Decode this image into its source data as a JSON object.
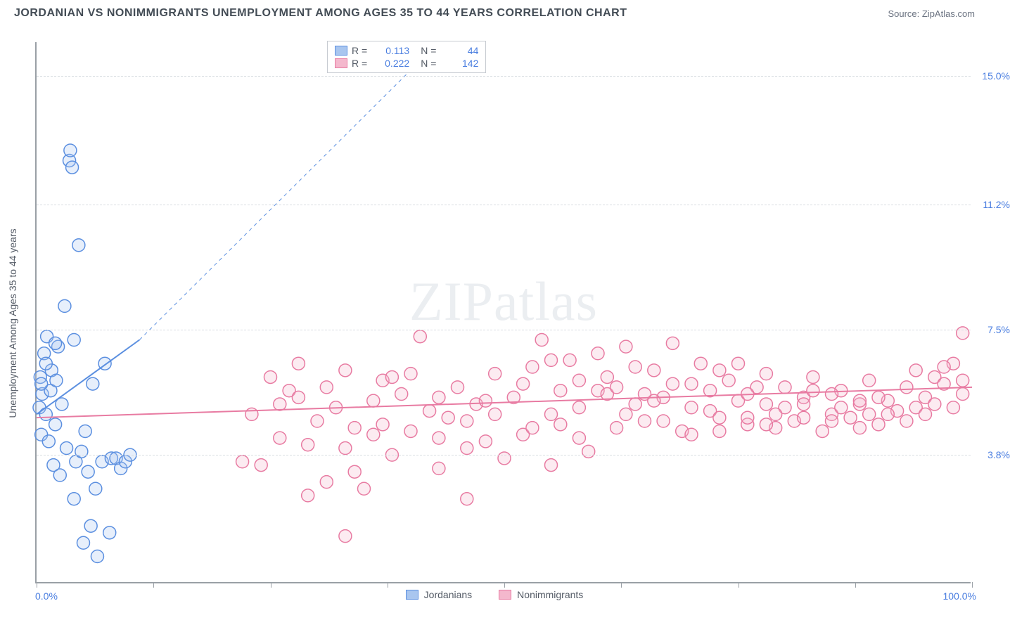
{
  "title": "JORDANIAN VS NONIMMIGRANTS UNEMPLOYMENT AMONG AGES 35 TO 44 YEARS CORRELATION CHART",
  "source_label": "Source: ZipAtlas.com",
  "watermark": "ZIPatlas",
  "chart": {
    "type": "scatter",
    "background_color": "#ffffff",
    "grid_color": "#d9dde2",
    "axis_color": "#9aa0a6",
    "yaxis_title": "Unemployment Among Ages 35 to 44 years",
    "yaxis_title_fontsize": 14,
    "yaxis_title_color": "#545b66",
    "xlim": [
      0,
      100
    ],
    "ylim": [
      0,
      16
    ],
    "xlabel_min": "0.0%",
    "xlabel_max": "100.0%",
    "xlabel_color": "#4a7ee0",
    "xtick_positions": [
      0,
      12.5,
      25,
      37.5,
      50,
      62.5,
      75,
      87.5,
      100
    ],
    "yticks": [
      {
        "value": 3.8,
        "label": "3.8%"
      },
      {
        "value": 7.5,
        "label": "7.5%"
      },
      {
        "value": 11.2,
        "label": "11.2%"
      },
      {
        "value": 15.0,
        "label": "15.0%"
      }
    ],
    "ytick_color": "#4a7ee0",
    "ytick_fontsize": 14,
    "marker_radius": 9,
    "marker_stroke_width": 1.5,
    "marker_fill_opacity": 0.28,
    "series": [
      {
        "name": "Jordanians",
        "color": "#5b8fe0",
        "fill": "#a9c6ef",
        "R": 0.113,
        "N": 44,
        "trend": {
          "x1": 0,
          "y1": 5.0,
          "x2": 11,
          "y2": 7.2,
          "dashed_after": true,
          "dash_x2": 43,
          "dash_y2": 16.0,
          "width": 2
        },
        "points": [
          [
            0.3,
            5.2
          ],
          [
            0.4,
            6.1
          ],
          [
            0.5,
            4.4
          ],
          [
            0.6,
            5.6
          ],
          [
            0.8,
            6.8
          ],
          [
            1.0,
            5.0
          ],
          [
            1.1,
            7.3
          ],
          [
            1.3,
            4.2
          ],
          [
            1.5,
            5.7
          ],
          [
            1.6,
            6.3
          ],
          [
            1.8,
            3.5
          ],
          [
            2.0,
            4.7
          ],
          [
            2.1,
            6.0
          ],
          [
            2.3,
            7.0
          ],
          [
            2.5,
            3.2
          ],
          [
            2.7,
            5.3
          ],
          [
            3.0,
            8.2
          ],
          [
            3.2,
            4.0
          ],
          [
            3.5,
            12.5
          ],
          [
            3.6,
            12.8
          ],
          [
            3.8,
            12.3
          ],
          [
            4.0,
            2.5
          ],
          [
            4.2,
            3.6
          ],
          [
            4.5,
            10.0
          ],
          [
            4.8,
            3.9
          ],
          [
            5.0,
            1.2
          ],
          [
            5.2,
            4.5
          ],
          [
            5.5,
            3.3
          ],
          [
            5.8,
            1.7
          ],
          [
            6.0,
            5.9
          ],
          [
            6.3,
            2.8
          ],
          [
            6.5,
            0.8
          ],
          [
            7.0,
            3.6
          ],
          [
            7.3,
            6.5
          ],
          [
            7.8,
            1.5
          ],
          [
            8.0,
            3.7
          ],
          [
            8.5,
            3.7
          ],
          [
            9.0,
            3.4
          ],
          [
            9.5,
            3.6
          ],
          [
            10.0,
            3.8
          ],
          [
            4.0,
            7.2
          ],
          [
            2.0,
            7.1
          ],
          [
            1.0,
            6.5
          ],
          [
            0.5,
            5.9
          ]
        ]
      },
      {
        "name": "Nonimmigrants",
        "color": "#e87ba2",
        "fill": "#f4b8cd",
        "R": 0.222,
        "N": 142,
        "trend": {
          "x1": 0,
          "y1": 4.9,
          "x2": 100,
          "y2": 5.8,
          "dashed_after": false,
          "width": 2
        },
        "points": [
          [
            22,
            3.6
          ],
          [
            24,
            3.5
          ],
          [
            25,
            6.1
          ],
          [
            26,
            4.3
          ],
          [
            27,
            5.7
          ],
          [
            28,
            6.5
          ],
          [
            29,
            2.6
          ],
          [
            30,
            4.8
          ],
          [
            31,
            3.0
          ],
          [
            32,
            5.2
          ],
          [
            33,
            6.3
          ],
          [
            33,
            1.4
          ],
          [
            34,
            4.6
          ],
          [
            35,
            2.8
          ],
          [
            36,
            5.4
          ],
          [
            37,
            6.0
          ],
          [
            38,
            3.8
          ],
          [
            39,
            5.6
          ],
          [
            40,
            4.5
          ],
          [
            41,
            7.3
          ],
          [
            42,
            5.1
          ],
          [
            43,
            3.4
          ],
          [
            44,
            4.9
          ],
          [
            45,
            5.8
          ],
          [
            46,
            2.5
          ],
          [
            47,
            5.3
          ],
          [
            48,
            4.2
          ],
          [
            49,
            6.2
          ],
          [
            50,
            3.7
          ],
          [
            51,
            5.5
          ],
          [
            52,
            4.4
          ],
          [
            53,
            6.4
          ],
          [
            54,
            7.2
          ],
          [
            55,
            5.0
          ],
          [
            56,
            4.7
          ],
          [
            57,
            6.6
          ],
          [
            58,
            5.2
          ],
          [
            59,
            3.9
          ],
          [
            60,
            5.7
          ],
          [
            61,
            6.1
          ],
          [
            62,
            4.6
          ],
          [
            63,
            7.0
          ],
          [
            64,
            5.3
          ],
          [
            65,
            4.8
          ],
          [
            66,
            6.3
          ],
          [
            67,
            5.5
          ],
          [
            68,
            7.1
          ],
          [
            69,
            4.5
          ],
          [
            70,
            5.9
          ],
          [
            71,
            6.5
          ],
          [
            72,
            5.1
          ],
          [
            73,
            4.9
          ],
          [
            74,
            6.0
          ],
          [
            75,
            5.4
          ],
          [
            76,
            4.7
          ],
          [
            77,
            5.8
          ],
          [
            78,
            6.2
          ],
          [
            79,
            4.6
          ],
          [
            80,
            5.2
          ],
          [
            81,
            4.8
          ],
          [
            82,
            5.5
          ],
          [
            83,
            6.1
          ],
          [
            84,
            4.5
          ],
          [
            85,
            5.0
          ],
          [
            86,
            5.7
          ],
          [
            87,
            4.9
          ],
          [
            88,
            5.3
          ],
          [
            89,
            6.0
          ],
          [
            90,
            4.7
          ],
          [
            91,
            5.4
          ],
          [
            92,
            5.1
          ],
          [
            93,
            5.8
          ],
          [
            94,
            6.3
          ],
          [
            95,
            5.5
          ],
          [
            96,
            6.1
          ],
          [
            97,
            5.9
          ],
          [
            98,
            6.5
          ],
          [
            98,
            5.2
          ],
          [
            99,
            7.4
          ],
          [
            99,
            6.0
          ],
          [
            99,
            5.6
          ],
          [
            23,
            5.0
          ],
          [
            26,
            5.3
          ],
          [
            29,
            4.1
          ],
          [
            31,
            5.8
          ],
          [
            34,
            3.3
          ],
          [
            37,
            4.7
          ],
          [
            40,
            6.2
          ],
          [
            43,
            5.5
          ],
          [
            46,
            4.0
          ],
          [
            49,
            5.0
          ],
          [
            52,
            5.9
          ],
          [
            55,
            6.6
          ],
          [
            58,
            4.3
          ],
          [
            61,
            5.6
          ],
          [
            64,
            6.4
          ],
          [
            67,
            4.8
          ],
          [
            70,
            5.2
          ],
          [
            73,
            6.3
          ],
          [
            76,
            5.6
          ],
          [
            79,
            5.0
          ],
          [
            82,
            4.9
          ],
          [
            85,
            5.6
          ],
          [
            88,
            4.6
          ],
          [
            91,
            5.0
          ],
          [
            94,
            5.2
          ],
          [
            97,
            6.4
          ],
          [
            55,
            3.5
          ],
          [
            60,
            6.8
          ],
          [
            65,
            5.6
          ],
          [
            70,
            4.4
          ],
          [
            75,
            6.5
          ],
          [
            80,
            5.8
          ],
          [
            85,
            4.8
          ],
          [
            90,
            5.5
          ],
          [
            95,
            5.0
          ],
          [
            28,
            5.5
          ],
          [
            33,
            4.0
          ],
          [
            38,
            6.1
          ],
          [
            43,
            4.3
          ],
          [
            48,
            5.4
          ],
          [
            53,
            4.6
          ],
          [
            58,
            6.0
          ],
          [
            63,
            5.0
          ],
          [
            68,
            5.9
          ],
          [
            73,
            4.5
          ],
          [
            78,
            5.3
          ],
          [
            83,
            5.7
          ],
          [
            88,
            5.4
          ],
          [
            93,
            4.8
          ],
          [
            96,
            5.3
          ],
          [
            86,
            5.2
          ],
          [
            76,
            4.9
          ],
          [
            66,
            5.4
          ],
          [
            56,
            5.7
          ],
          [
            46,
            4.8
          ],
          [
            36,
            4.4
          ],
          [
            78,
            4.7
          ],
          [
            82,
            5.3
          ],
          [
            89,
            5.0
          ],
          [
            72,
            5.7
          ],
          [
            62,
            5.8
          ]
        ]
      }
    ],
    "legend_top": {
      "rows": [
        {
          "swatch": 0,
          "r_label": "R  =",
          "r_value": "0.113",
          "n_label": "N  =",
          "n_value": "44"
        },
        {
          "swatch": 1,
          "r_label": "R  =",
          "r_value": "0.222",
          "n_label": "N  =",
          "n_value": "142"
        }
      ]
    },
    "legend_bottom": [
      {
        "swatch": 0,
        "label": "Jordanians"
      },
      {
        "swatch": 1,
        "label": "Nonimmigrants"
      }
    ]
  }
}
